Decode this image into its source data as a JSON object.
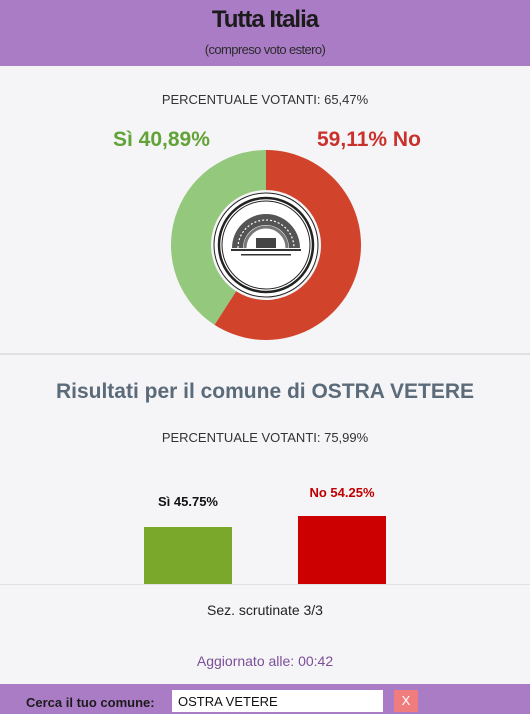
{
  "header": {
    "title": "Tutta Italia",
    "subtitle": "(compreso voto estero)"
  },
  "national": {
    "turnout_text": "PERCENTUALE VOTANTI: 65,47%",
    "yes_pct": "Sì 40,89%",
    "no_pct": "59,11% No",
    "yes_value": 40.89,
    "no_value": 59.11,
    "yes_color": "#94c87d",
    "no_color": "#d2432c"
  },
  "comune": {
    "title": "Risultati per il comune di OSTRA VETERE",
    "turnout_text": "PERCENTUALE VOTANTI: 75,99%",
    "yes_label": "Sì 45.75%",
    "no_label": "No 54.25%",
    "yes_value": 45.75,
    "no_value": 54.25,
    "yes_color": "#7aa82a",
    "no_color": "#cc0000",
    "sections": "Sez. scrutinate 3/3",
    "updated": "Aggiornato alle: 00:42"
  },
  "search": {
    "label": "Cerca il tuo comune:",
    "value": "OSTRA VETERE",
    "clear_label": "X"
  }
}
